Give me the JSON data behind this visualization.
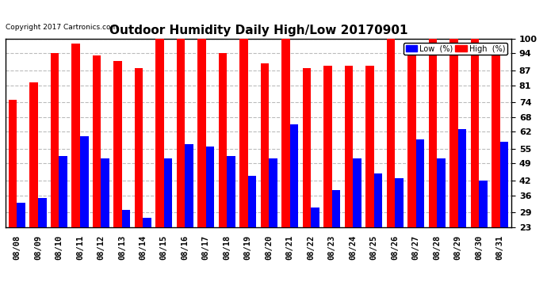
{
  "title": "Outdoor Humidity Daily High/Low 20170901",
  "copyright": "Copyright 2017 Cartronics.com",
  "dates": [
    "08/08",
    "08/09",
    "08/10",
    "08/11",
    "08/12",
    "08/13",
    "08/14",
    "08/15",
    "08/16",
    "08/17",
    "08/18",
    "08/19",
    "08/20",
    "08/21",
    "08/22",
    "08/23",
    "08/24",
    "08/25",
    "08/26",
    "08/27",
    "08/28",
    "08/29",
    "08/30",
    "08/31"
  ],
  "high": [
    75,
    82,
    94,
    98,
    93,
    91,
    88,
    100,
    100,
    100,
    94,
    100,
    90,
    100,
    88,
    89,
    89,
    89,
    100,
    94,
    100,
    100,
    100,
    94
  ],
  "low": [
    33,
    35,
    52,
    60,
    51,
    30,
    27,
    51,
    57,
    56,
    52,
    44,
    51,
    65,
    31,
    38,
    51,
    45,
    43,
    59,
    51,
    63,
    42,
    58
  ],
  "high_color": "#ff0000",
  "low_color": "#0000ff",
  "bg_color": "#ffffff",
  "plot_bg_color": "#ffffff",
  "grid_color": "#bbbbbb",
  "ylim_min": 23,
  "ylim_max": 100,
  "yticks": [
    23,
    29,
    36,
    42,
    49,
    55,
    62,
    68,
    74,
    81,
    87,
    94,
    100
  ],
  "title_fontsize": 11,
  "legend_low_label": "Low  (%)",
  "legend_high_label": "High  (%)",
  "bar_bottom": 23
}
